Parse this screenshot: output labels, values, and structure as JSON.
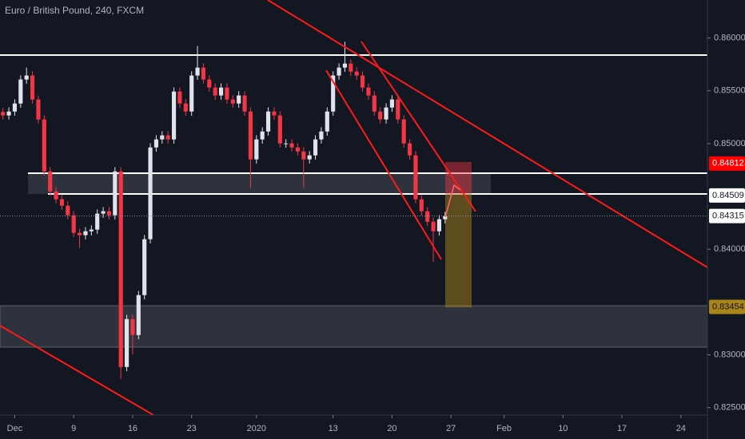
{
  "chart_data": {
    "type": "candlestick",
    "title": "Euro / British Pound, 240, FXCM",
    "categories": [
      null,
      null,
      "Dec",
      null,
      null,
      null,
      null,
      null,
      null,
      null,
      null,
      null,
      "9",
      null,
      null,
      null,
      null,
      null,
      null,
      null,
      null,
      null,
      "16",
      null,
      null,
      null,
      null,
      null,
      null,
      null,
      null,
      null,
      "23",
      null,
      null,
      null,
      null,
      null,
      null,
      null,
      null,
      null,
      null,
      "2020",
      null,
      null,
      null,
      null,
      null,
      null,
      null,
      null,
      null,
      null,
      null,
      null,
      "13",
      null,
      null,
      null,
      null,
      null,
      null,
      null,
      null,
      null,
      "20",
      null,
      null,
      null,
      null,
      null,
      null,
      null,
      null,
      null,
      "27",
      null,
      null,
      null,
      null,
      null,
      null,
      null,
      null,
      "Feb",
      null,
      null,
      null,
      null,
      null,
      null,
      null,
      null,
      null,
      "10",
      null,
      null,
      null,
      null,
      null,
      null,
      null,
      null,
      null,
      "17",
      null,
      null,
      null,
      null,
      null,
      null,
      null,
      null,
      null,
      "24",
      null,
      null,
      null,
      null
    ],
    "open": [
      0.853,
      0.85267,
      0.85304,
      0.8538,
      0.85607,
      0.85645,
      0.85418,
      0.85229,
      0.84737,
      0.84548,
      0.84473,
      0.84412,
      0.84322,
      0.84155,
      0.84133,
      0.8417,
      0.84186,
      0.84337,
      0.8436,
      0.84322,
      0.84737,
      0.82885,
      0.83339,
      0.83188,
      0.83566,
      0.84095,
      0.84964,
      0.8504,
      0.85078,
      0.8504,
      0.85493,
      0.8538,
      0.85304,
      0.85645,
      0.8572,
      0.85607,
      0.85531,
      0.85456,
      0.85531,
      0.85418,
      0.8538,
      0.85456,
      0.85304,
      0.84851,
      0.8504,
      0.85115,
      0.85304,
      0.85267,
      0.85002,
      0.85002,
      0.84964,
      0.84926,
      0.84851,
      0.84889,
      0.8504,
      0.85115,
      0.85304,
      0.85645,
      0.8572,
      0.85758,
      0.85682,
      0.85645,
      0.85531,
      0.85456,
      0.85304,
      0.85229,
      0.85342,
      0.85418,
      0.85229,
      0.85002,
      0.84889,
      0.84473,
      0.8436,
      0.84261,
      0.8417,
      0.84284,
      null,
      null,
      null,
      null,
      null,
      null,
      null,
      null,
      null,
      null,
      null,
      null,
      null,
      null,
      null,
      null,
      null,
      null,
      null,
      null,
      null,
      null,
      null,
      null,
      null,
      null,
      null,
      null,
      null,
      null,
      null,
      null,
      null,
      null,
      null,
      null,
      null,
      null,
      null,
      null,
      null,
      null,
      null,
      null
    ],
    "high": [
      0.8534,
      0.85344,
      0.8542,
      0.85647,
      0.8572,
      0.85685,
      0.85458,
      0.85269,
      0.84777,
      0.84588,
      0.84513,
      0.84452,
      0.84362,
      0.84195,
      0.8421,
      0.84226,
      0.84377,
      0.844,
      0.844,
      0.84777,
      0.84777,
      0.83379,
      0.83379,
      0.83606,
      0.84135,
      0.85004,
      0.8508,
      0.85118,
      0.85118,
      0.85533,
      0.85533,
      0.8542,
      0.85685,
      0.85925,
      0.8576,
      0.85647,
      0.85571,
      0.85571,
      0.85571,
      0.85458,
      0.85496,
      0.85496,
      0.85344,
      0.8508,
      0.85155,
      0.85344,
      0.85344,
      0.85307,
      0.85042,
      0.85042,
      0.85004,
      0.84966,
      0.84929,
      0.8508,
      0.85155,
      0.85344,
      0.85685,
      0.8576,
      0.85965,
      0.85798,
      0.85722,
      0.85685,
      0.85571,
      0.85496,
      0.85344,
      0.85382,
      0.85458,
      0.85458,
      0.85269,
      0.85042,
      0.84929,
      0.84513,
      0.844,
      0.84301,
      0.84324,
      0.84355,
      null,
      null,
      null,
      null,
      null,
      null,
      null,
      null,
      null,
      null,
      null,
      null,
      null,
      null,
      null,
      null,
      null,
      null,
      null,
      null,
      null,
      null,
      null,
      null,
      null,
      null,
      null,
      null,
      null,
      null,
      null,
      null,
      null,
      null,
      null,
      null,
      null,
      null,
      null,
      null,
      null,
      null,
      null,
      null
    ],
    "low": [
      0.85227,
      0.85227,
      0.85264,
      0.8534,
      0.85567,
      0.85378,
      0.85189,
      0.84697,
      0.84508,
      0.84433,
      0.84372,
      0.84282,
      0.84115,
      0.84013,
      0.84093,
      0.8413,
      0.84146,
      0.84297,
      0.84282,
      0.84282,
      0.82772,
      0.82845,
      0.83001,
      0.83148,
      0.83526,
      0.84055,
      0.84924,
      0.85,
      0.85,
      0.85,
      0.8534,
      0.85264,
      0.85264,
      0.85605,
      0.85567,
      0.85491,
      0.85416,
      0.85416,
      0.85378,
      0.8534,
      0.8534,
      0.85264,
      0.8458,
      0.84811,
      0.85,
      0.85075,
      0.85227,
      0.84962,
      0.84962,
      0.84924,
      0.84886,
      0.8458,
      0.84811,
      0.84849,
      0.85,
      0.85075,
      0.85264,
      0.85605,
      0.8568,
      0.85642,
      0.85605,
      0.85491,
      0.85416,
      0.85264,
      0.85189,
      0.85189,
      0.85302,
      0.85189,
      0.84962,
      0.84849,
      0.84433,
      0.8432,
      0.84221,
      0.83883,
      0.8413,
      0.84244,
      null,
      null,
      null,
      null,
      null,
      null,
      null,
      null,
      null,
      null,
      null,
      null,
      null,
      null,
      null,
      null,
      null,
      null,
      null,
      null,
      null,
      null,
      null,
      null,
      null,
      null,
      null,
      null,
      null,
      null,
      null,
      null,
      null,
      null,
      null,
      null,
      null,
      null,
      null,
      null,
      null,
      null,
      null,
      null
    ],
    "close": [
      0.85267,
      0.85304,
      0.8538,
      0.85607,
      0.85645,
      0.85418,
      0.85229,
      0.84737,
      0.84548,
      0.84473,
      0.84412,
      0.84322,
      0.84155,
      0.84133,
      0.8417,
      0.84186,
      0.84337,
      0.8436,
      0.84322,
      0.84737,
      0.82885,
      0.83339,
      0.83188,
      0.83566,
      0.84095,
      0.84964,
      0.8504,
      0.85078,
      0.8504,
      0.85493,
      0.8538,
      0.85304,
      0.85645,
      0.8572,
      0.85607,
      0.85531,
      0.85456,
      0.85531,
      0.85418,
      0.8538,
      0.85456,
      0.85304,
      0.84851,
      0.8504,
      0.85115,
      0.85304,
      0.85267,
      0.85002,
      0.85002,
      0.84964,
      0.84926,
      0.84851,
      0.84889,
      0.8504,
      0.85115,
      0.85304,
      0.85645,
      0.8572,
      0.85758,
      0.85682,
      0.85645,
      0.85531,
      0.85456,
      0.85304,
      0.85229,
      0.85342,
      0.85418,
      0.85229,
      0.85002,
      0.84889,
      0.84473,
      0.8436,
      0.84261,
      0.8417,
      0.84284,
      0.84315,
      null,
      null,
      null,
      null,
      null,
      null,
      null,
      null,
      null,
      null,
      null,
      null,
      null,
      null,
      null,
      null,
      null,
      null,
      null,
      null,
      null,
      null,
      null,
      null,
      null,
      null,
      null,
      null,
      null,
      null,
      null,
      null,
      null,
      null,
      null,
      null,
      null,
      null,
      null,
      null,
      null,
      null,
      null,
      null
    ],
    "up_color": "#e0e3eb",
    "down_color": "#f23645",
    "ylim": [
      0.8243,
      0.8636
    ],
    "yticks": [
      {
        "value": 0.86,
        "label": "0.86000"
      },
      {
        "value": 0.855,
        "label": "0.85500"
      },
      {
        "value": 0.85,
        "label": "0.85000"
      },
      {
        "value": 0.84,
        "label": "0.84000"
      },
      {
        "value": 0.83,
        "label": "0.83000"
      },
      {
        "value": 0.825,
        "label": "0.82500"
      }
    ],
    "levels": [
      {
        "value": 0.84812,
        "label": "0.84812",
        "color": "#ff0000",
        "text_color": "#ffffff"
      },
      {
        "value": 0.84509,
        "label": "0.84509",
        "color": "#ffffff",
        "text_color": "#131722"
      },
      {
        "value": 0.84315,
        "label": "0.84315",
        "color": "#ffffff",
        "text_color": "#131722"
      },
      {
        "value": 0.83454,
        "label": "0.83454",
        "color": "#a8841a",
        "text_color": "#131722"
      }
    ]
  }
}
